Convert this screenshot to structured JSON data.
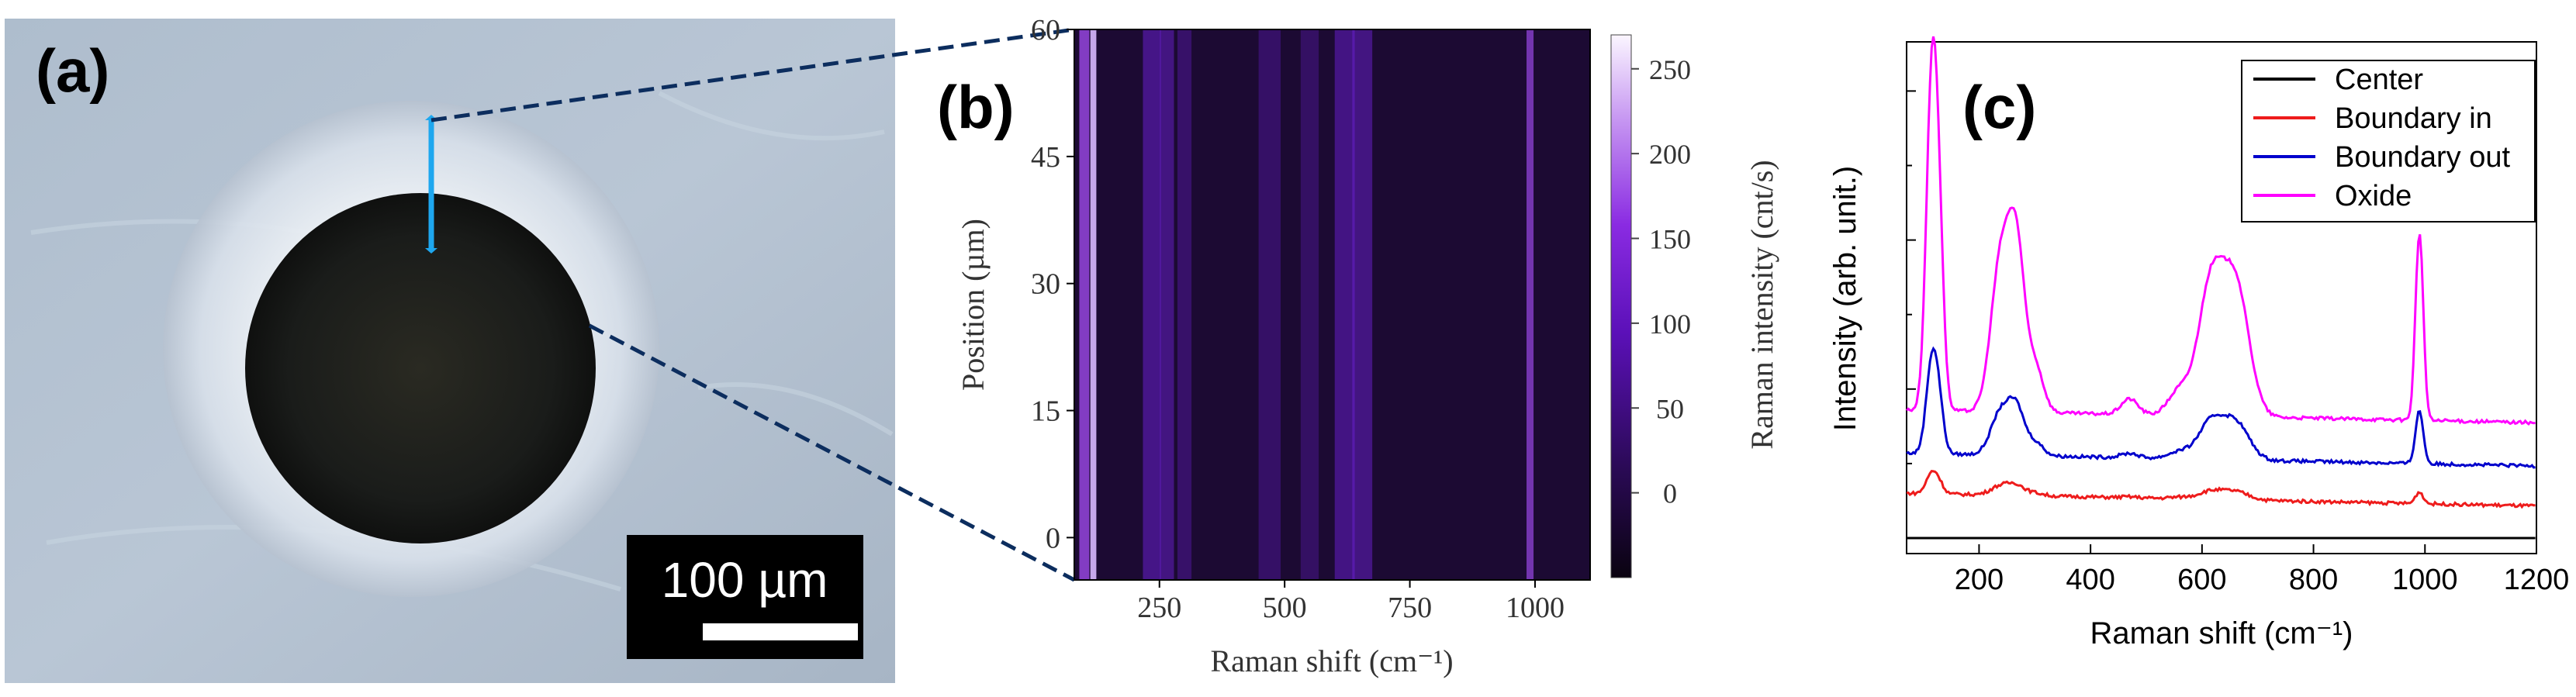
{
  "panel_a": {
    "label": "(a)",
    "scale_bar_text": "100 µm"
  },
  "chart_data": [
    {
      "panel": "(b)",
      "type": "heatmap",
      "title": "",
      "xlabel": "Raman shift (cm⁻¹)",
      "ylabel": "Position (µm)",
      "colorbar_label": "Raman intensity (cnt/s)",
      "xlim": [
        80,
        1110
      ],
      "ylim": [
        -5,
        60
      ],
      "x_ticks": [
        250,
        500,
        750,
        1000
      ],
      "y_ticks": [
        0,
        15,
        30,
        45,
        60
      ],
      "colorbar_range": [
        -50,
        270
      ],
      "colorbar_ticks": [
        0,
        50,
        100,
        150,
        200,
        250
      ],
      "bands": [
        {
          "center": 100,
          "width": 10,
          "intensity": 200
        },
        {
          "center": 118,
          "width": 6,
          "intensity": 250
        },
        {
          "center": 235,
          "width": 18,
          "intensity": 110
        },
        {
          "center": 265,
          "width": 14,
          "intensity": 95
        },
        {
          "center": 300,
          "width": 14,
          "intensity": 40
        },
        {
          "center": 470,
          "width": 22,
          "intensity": 30
        },
        {
          "center": 550,
          "width": 18,
          "intensity": 25
        },
        {
          "center": 620,
          "width": 20,
          "intensity": 100
        },
        {
          "center": 655,
          "width": 20,
          "intensity": 95
        },
        {
          "center": 990,
          "width": 7,
          "intensity": 160
        }
      ]
    },
    {
      "panel": "(c)",
      "type": "line",
      "title": "",
      "xlabel": "Raman shift (cm⁻¹)",
      "ylabel": "Intensity (arb. unit.)",
      "xlim": [
        70,
        1200
      ],
      "x_ticks": [
        200,
        400,
        600,
        800,
        1000,
        1200
      ],
      "legend_position": "top-right",
      "series": [
        {
          "name": "Center",
          "color": "#000000",
          "baseline": 0.0,
          "scale": 0.0
        },
        {
          "name": "Boundary in",
          "color": "#ee1c1c",
          "baseline": 0.2,
          "scale": 0.12
        },
        {
          "name": "Boundary out",
          "color": "#0000cc",
          "baseline": 0.45,
          "scale": 0.55
        },
        {
          "name": "Oxide",
          "color": "#ff00ff",
          "baseline": 0.72,
          "scale": 1.95
        }
      ],
      "peaks": [
        {
          "center": 115,
          "width": 10,
          "height": 1.0
        },
        {
          "center": 128,
          "width": 9,
          "height": 0.45
        },
        {
          "center": 240,
          "width": 18,
          "height": 0.5
        },
        {
          "center": 268,
          "width": 14,
          "height": 0.45
        },
        {
          "center": 300,
          "width": 15,
          "height": 0.15
        },
        {
          "center": 470,
          "width": 15,
          "height": 0.05
        },
        {
          "center": 560,
          "width": 20,
          "height": 0.08
        },
        {
          "center": 615,
          "width": 22,
          "height": 0.4
        },
        {
          "center": 660,
          "width": 24,
          "height": 0.42
        },
        {
          "center": 990,
          "width": 7,
          "height": 0.6
        }
      ]
    }
  ]
}
